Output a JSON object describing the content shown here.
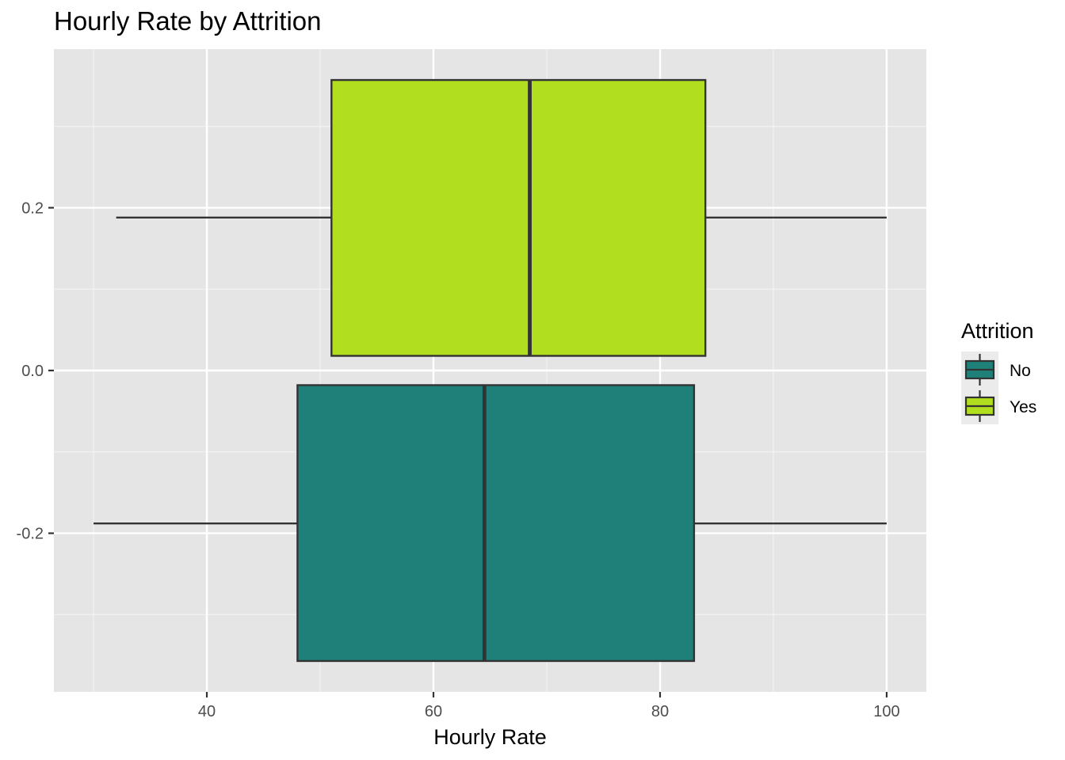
{
  "chart_data": {
    "type": "boxplot",
    "orientation": "horizontal",
    "title": "Hourly Rate by Attrition",
    "xlabel": "Hourly Rate",
    "ylabel": "",
    "xlim": [
      26.5,
      103.5
    ],
    "ylim": [
      -0.395,
      0.395
    ],
    "x_ticks": [
      40,
      60,
      80,
      100
    ],
    "x_tick_labels": [
      "40",
      "60",
      "80",
      "100"
    ],
    "y_ticks": [
      -0.2,
      0.0,
      0.2
    ],
    "y_tick_labels": [
      "-0.2",
      "0.0",
      "0.2"
    ],
    "grid": true,
    "legend": {
      "title": "Attrition",
      "position": "right",
      "entries": [
        "No",
        "Yes"
      ]
    },
    "series": [
      {
        "name": "No",
        "color": "#1f8079",
        "y_range": [
          -0.357,
          -0.018
        ],
        "whisker_low": 30,
        "q1": 48,
        "median": 64.5,
        "q3": 83,
        "whisker_high": 100,
        "whisker_y": -0.188
      },
      {
        "name": "Yes",
        "color": "#b1df1f",
        "y_range": [
          0.018,
          0.357
        ],
        "whisker_low": 32,
        "q1": 51,
        "median": 68.5,
        "q3": 84,
        "whisker_high": 100,
        "whisker_y": 0.188
      }
    ]
  }
}
